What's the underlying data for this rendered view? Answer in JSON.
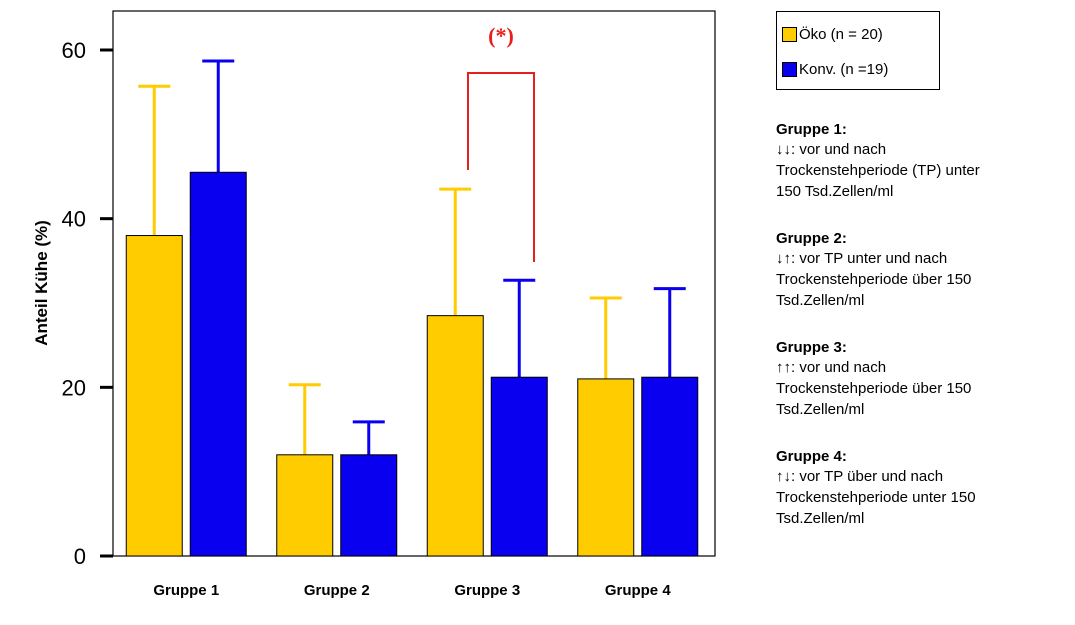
{
  "chart_data": {
    "type": "bar",
    "ylabel": "Anteil Kühe (%)",
    "xlabel": "",
    "ylim": [
      0,
      65
    ],
    "yticks": [
      "0",
      "20",
      "40",
      "60"
    ],
    "categories": [
      "Gruppe 1",
      "Gruppe 2",
      "Gruppe 3",
      "Gruppe 4"
    ],
    "series": [
      {
        "name": "Öko (n = 20)",
        "color": "#ffcc00",
        "values": [
          38,
          12,
          28.5,
          21
        ],
        "error": [
          17.7,
          8.3,
          15,
          9.6
        ]
      },
      {
        "name": "Konv. (n =19)",
        "color": "#0a00f0",
        "values": [
          45.5,
          12,
          21.2,
          21.2
        ],
        "error": [
          13.2,
          3.9,
          11.5,
          10.5
        ]
      }
    ],
    "grid": false,
    "legend_position": "right",
    "significance": {
      "label": "(*)",
      "category": "Gruppe 3",
      "color": "#e8201c"
    }
  },
  "legend": {
    "items": [
      {
        "label": "Öko (n = 20)",
        "color": "#ffcc00"
      },
      {
        "label": "Konv. (n =19)",
        "color": "#0a00f0"
      }
    ]
  },
  "notes": [
    {
      "title": "Gruppe 1:",
      "lines": [
        "↓↓: vor und nach",
        "Trockenstehperiode (TP) unter",
        "150 Tsd.Zellen/ml"
      ]
    },
    {
      "title": "Gruppe 2:",
      "lines": [
        "↓↑: vor TP unter und nach",
        "Trockenstehperiode über 150",
        "Tsd.Zellen/ml"
      ]
    },
    {
      "title": "Gruppe 3:",
      "lines": [
        "↑↑: vor und nach",
        "Trockenstehperiode über 150",
        "Tsd.Zellen/ml"
      ]
    },
    {
      "title": "Gruppe 4:",
      "lines": [
        "↑↓: vor TP über und nach",
        "Trockenstehperiode unter 150",
        "Tsd.Zellen/ml"
      ]
    }
  ]
}
